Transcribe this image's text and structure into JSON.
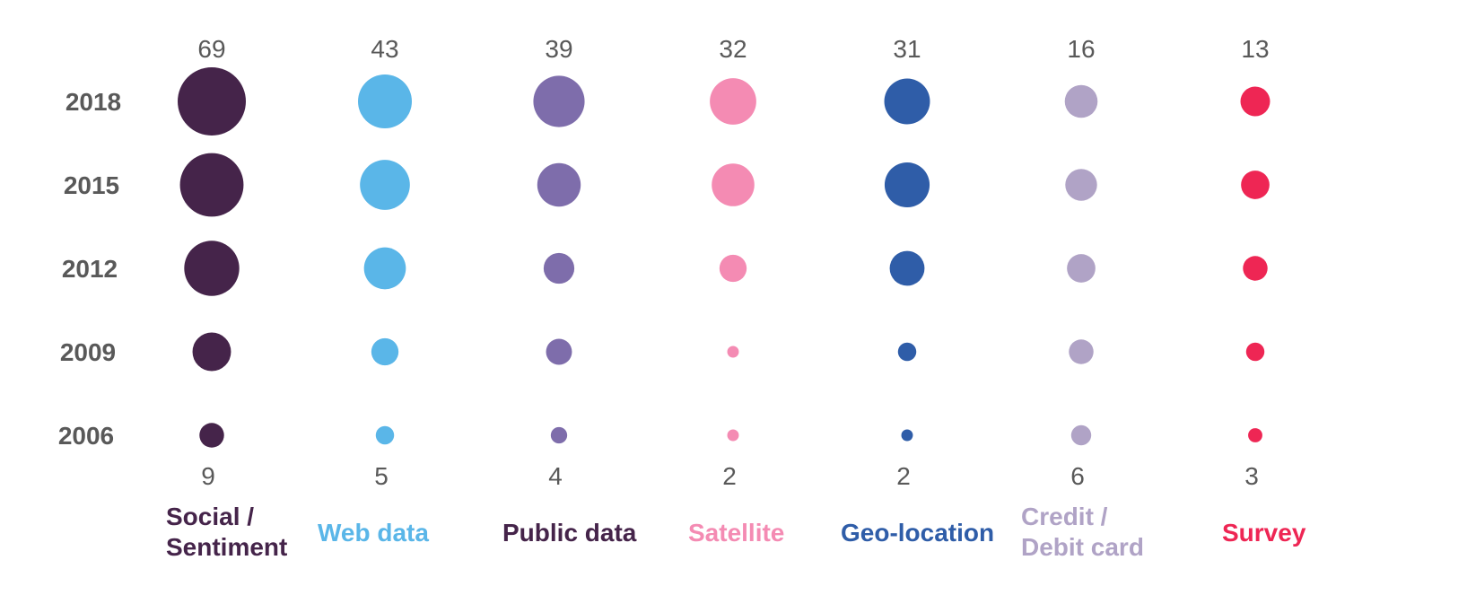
{
  "chart_data": {
    "type": "bubble",
    "title": "",
    "xlabel": "",
    "ylabel": "",
    "years": [
      "2018",
      "2015",
      "2012",
      "2009",
      "2006"
    ],
    "series": [
      {
        "name": "Social / Sentiment",
        "label_lines": [
          "Social /",
          "Sentiment"
        ],
        "color": "#45244a",
        "label_color": "#45244a",
        "values": [
          69,
          60,
          45,
          22,
          9
        ]
      },
      {
        "name": "Web data",
        "label_lines": [
          "Web data"
        ],
        "color": "#5ab6e8",
        "label_color": "#5ab6e8",
        "values": [
          43,
          37,
          26,
          11,
          5
        ]
      },
      {
        "name": "Public data",
        "label_lines": [
          "Public data"
        ],
        "color": "#7e6dab",
        "label_color": "#45244a",
        "values": [
          39,
          28,
          14,
          10,
          4
        ]
      },
      {
        "name": "Satellite",
        "label_lines": [
          "Satellite"
        ],
        "color": "#f48bb3",
        "label_color": "#f48bb3",
        "values": [
          32,
          27,
          11,
          2,
          2
        ]
      },
      {
        "name": "Geo-location",
        "label_lines": [
          "Geo-location"
        ],
        "color": "#2f5da8",
        "label_color": "#2f5da8",
        "values": [
          31,
          30,
          18,
          5,
          2
        ]
      },
      {
        "name": "Credit / Debit card",
        "label_lines": [
          "Credit /",
          "Debit card"
        ],
        "color": "#b0a3c6",
        "label_color": "#b0a3c6",
        "values": [
          16,
          15,
          12,
          9,
          6
        ]
      },
      {
        "name": "Survey",
        "label_lines": [
          "Survey"
        ],
        "color": "#ee2654",
        "label_color": "#ee2654",
        "values": [
          13,
          12,
          9,
          5,
          3
        ]
      }
    ],
    "top_labels": [
      "69",
      "43",
      "39",
      "32",
      "31",
      "16",
      "13"
    ],
    "bottom_labels": [
      "9",
      "5",
      "4",
      "2",
      "2",
      "6",
      "3"
    ]
  }
}
